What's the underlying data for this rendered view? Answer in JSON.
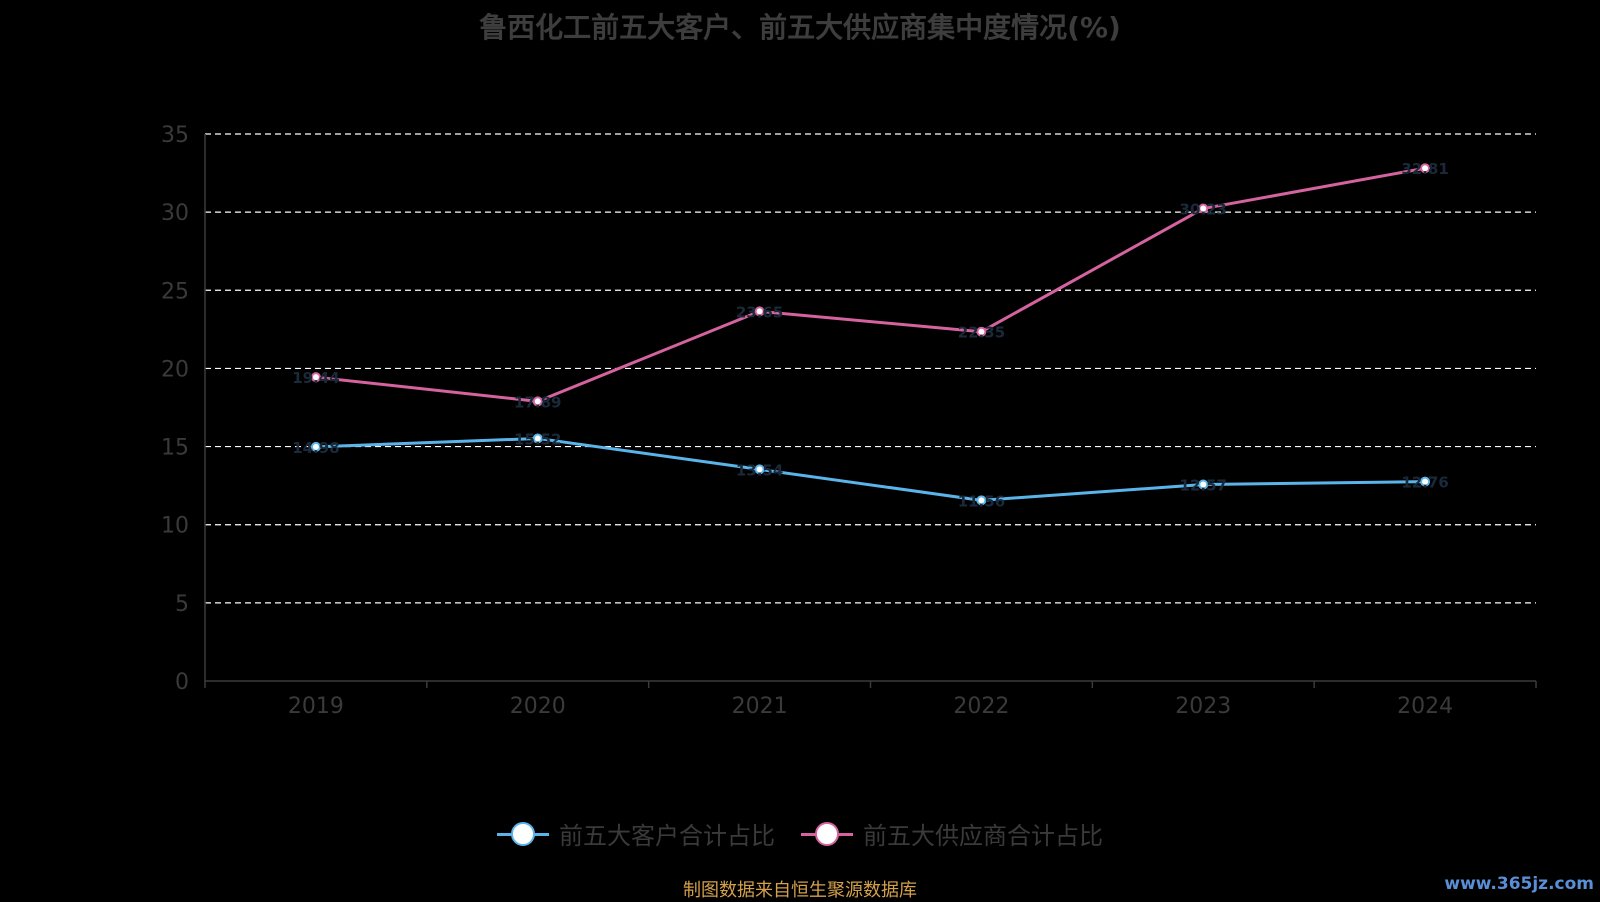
{
  "chart_data": {
    "type": "line",
    "title": "鲁西化工前五大客户、前五大供应商集中度情况(%)",
    "x": [
      "2019",
      "2020",
      "2021",
      "2022",
      "2023",
      "2024"
    ],
    "series": [
      {
        "name": "前五大客户合计占比",
        "color": "#5ab4ea",
        "values": [
          14.98,
          15.52,
          13.54,
          11.56,
          12.57,
          12.76
        ]
      },
      {
        "name": "前五大供应商合计占比",
        "color": "#d4639f",
        "values": [
          19.44,
          17.89,
          23.65,
          22.35,
          30.23,
          32.81
        ]
      }
    ],
    "ylim": [
      0,
      35
    ],
    "yticks": [
      "0",
      "5",
      "10",
      "15",
      "20",
      "25",
      "30",
      "35"
    ],
    "grid": true,
    "legend_position": "bottom-center"
  },
  "footer": {
    "source": "制图数据来自恒生聚源数据库",
    "watermark": "www.365jz.com"
  }
}
